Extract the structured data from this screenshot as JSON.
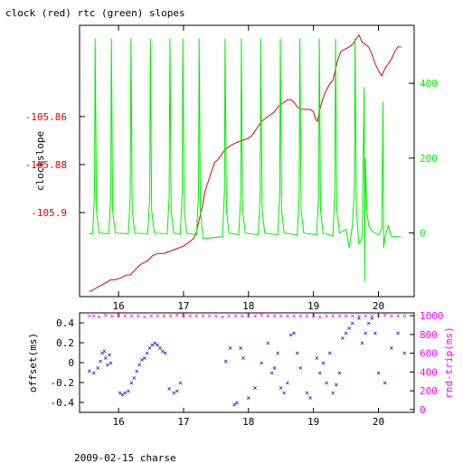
{
  "chart_data": [
    {
      "type": "line",
      "title": "clock (red) rtc (green) slopes",
      "xlabel": "",
      "ylabel": "clockslope",
      "y2label": "",
      "xlim": [
        15.4,
        20.55
      ],
      "ylim": [
        -105.935,
        -105.822
      ],
      "y2lim": [
        -170,
        555
      ],
      "xticks": [
        16,
        17,
        18,
        19,
        20
      ],
      "yticks": [
        -105.86,
        -105.88,
        -105.9
      ],
      "ytick_labels": [
        "-105.86",
        "-105.88",
        "-105.9"
      ],
      "y2ticks": [
        0,
        200,
        400
      ],
      "grid": false,
      "colors": {
        "axes": "#000000",
        "clock": "#e00000",
        "rtc": "#00ee00"
      },
      "series": [
        {
          "name": "clock",
          "axis": "left",
          "x": [
            15.55,
            15.62,
            15.68,
            15.75,
            15.82,
            15.88,
            15.95,
            16.05,
            16.12,
            16.18,
            16.25,
            16.32,
            16.38,
            16.45,
            16.52,
            16.6,
            16.7,
            16.8,
            16.9,
            17.0,
            17.05,
            17.1,
            17.15,
            17.2,
            17.25,
            17.3,
            17.33,
            17.38,
            17.43,
            17.48,
            17.53,
            17.58,
            17.63,
            17.68,
            17.73,
            17.8,
            17.9,
            18.0,
            18.05,
            18.1,
            18.15,
            18.2,
            18.3,
            18.4,
            18.45,
            18.5,
            18.55,
            18.6,
            18.65,
            18.7,
            18.75,
            18.8,
            18.85,
            18.9,
            18.95,
            19.0,
            19.03,
            19.06,
            19.1,
            19.14,
            19.18,
            19.22,
            19.26,
            19.3,
            19.34,
            19.38,
            19.42,
            19.48,
            19.55,
            19.6,
            19.65,
            19.7,
            19.75,
            19.8,
            19.85,
            19.9,
            19.95,
            20.0,
            20.05,
            20.1,
            20.15,
            20.2,
            20.25,
            20.3,
            20.35
          ],
          "y": [
            -105.933,
            -105.932,
            -105.931,
            -105.93,
            -105.929,
            -105.928,
            -105.928,
            -105.927,
            -105.926,
            -105.926,
            -105.924,
            -105.922,
            -105.921,
            -105.92,
            -105.918,
            -105.917,
            -105.917,
            -105.916,
            -105.915,
            -105.914,
            -105.913,
            -105.912,
            -105.911,
            -105.908,
            -105.902,
            -105.896,
            -105.891,
            -105.887,
            -105.883,
            -105.879,
            -105.878,
            -105.876,
            -105.874,
            -105.873,
            -105.872,
            -105.871,
            -105.87,
            -105.869,
            -105.868,
            -105.866,
            -105.864,
            -105.862,
            -105.86,
            -105.858,
            -105.856,
            -105.855,
            -105.854,
            -105.853,
            -105.853,
            -105.854,
            -105.856,
            -105.857,
            -105.857,
            -105.857,
            -105.857,
            -105.858,
            -105.861,
            -105.862,
            -105.857,
            -105.853,
            -105.85,
            -105.848,
            -105.846,
            -105.845,
            -105.84,
            -105.836,
            -105.833,
            -105.832,
            -105.831,
            -105.83,
            -105.828,
            -105.826,
            -105.829,
            -105.83,
            -105.831,
            -105.834,
            -105.838,
            -105.841,
            -105.843,
            -105.84,
            -105.838,
            -105.836,
            -105.833,
            -105.831,
            -105.831
          ]
        },
        {
          "name": "rtc",
          "axis": "right",
          "x": [
            15.55,
            15.6,
            15.63,
            15.64,
            15.66,
            15.7,
            15.85,
            15.88,
            15.89,
            15.91,
            15.95,
            16.15,
            16.18,
            16.19,
            16.21,
            16.25,
            16.45,
            16.48,
            16.49,
            16.51,
            16.55,
            16.75,
            16.78,
            16.79,
            16.81,
            16.85,
            16.95,
            16.98,
            16.99,
            17.01,
            17.05,
            17.2,
            17.23,
            17.24,
            17.26,
            17.3,
            17.6,
            17.63,
            17.64,
            17.66,
            17.7,
            17.85,
            17.88,
            17.89,
            17.91,
            17.95,
            18.15,
            18.18,
            18.19,
            18.21,
            18.25,
            18.45,
            18.48,
            18.49,
            18.51,
            18.55,
            18.75,
            18.78,
            18.79,
            18.81,
            18.85,
            19.05,
            19.08,
            19.09,
            19.11,
            19.15,
            19.25,
            19.3,
            19.33,
            19.34,
            19.36,
            19.4,
            19.5,
            19.55,
            19.6,
            19.63,
            19.64,
            19.66,
            19.7,
            19.75,
            19.78,
            19.79,
            19.8,
            19.82,
            19.85,
            19.9,
            19.95,
            20.0,
            20.05,
            20.07,
            20.08,
            20.1,
            20.15,
            20.2,
            20.25,
            20.3,
            20.35
          ],
          "y": [
            -2,
            -2,
            100,
            520,
            60,
            0,
            -2,
            100,
            520,
            60,
            0,
            -2,
            100,
            520,
            60,
            0,
            -2,
            100,
            520,
            60,
            0,
            -2,
            100,
            520,
            60,
            0,
            -3,
            110,
            520,
            60,
            0,
            -5,
            100,
            520,
            60,
            -15,
            -10,
            110,
            520,
            60,
            0,
            -5,
            100,
            520,
            60,
            0,
            -5,
            100,
            520,
            60,
            0,
            -5,
            100,
            520,
            60,
            0,
            -5,
            100,
            520,
            60,
            0,
            -5,
            100,
            520,
            60,
            0,
            -5,
            -8,
            120,
            520,
            60,
            0,
            10,
            -40,
            20,
            120,
            520,
            60,
            -30,
            -10,
            390,
            -130,
            200,
            60,
            20,
            5,
            0,
            -5,
            10,
            350,
            -40,
            -10,
            20,
            -10,
            -10,
            -10,
            -10
          ]
        }
      ]
    },
    {
      "type": "scatter",
      "title": "",
      "xlabel": "2009-02-15 charse",
      "ylabel": "offset(ms)",
      "y2label": "rnd-trip(ms)",
      "xlim": [
        15.4,
        20.55
      ],
      "ylim": [
        -0.5,
        0.5
      ],
      "y2lim": [
        -30,
        1030
      ],
      "xticks": [
        16,
        17,
        18,
        19,
        20
      ],
      "yticks": [
        0.4,
        0.2,
        0,
        -0.2,
        -0.4
      ],
      "ytick_labels": [
        "0.4",
        "0.2",
        "0",
        "-0.2",
        "-0.4"
      ],
      "y2ticks": [
        0,
        200,
        400,
        600,
        800,
        1000
      ],
      "grid": false,
      "colors": {
        "axes": "#000000",
        "offset": "#0000cc",
        "rndtrip": "#ff00ff"
      },
      "series": [
        {
          "name": "offset",
          "axis": "left",
          "x": [
            15.55,
            15.62,
            15.68,
            15.72,
            15.75,
            15.78,
            15.8,
            15.83,
            15.86,
            15.88,
            16.02,
            16.06,
            16.1,
            16.15,
            16.2,
            16.24,
            16.28,
            16.32,
            16.36,
            16.4,
            16.44,
            16.48,
            16.52,
            16.56,
            16.6,
            16.64,
            16.68,
            16.72,
            16.78,
            16.85,
            16.9,
            16.95,
            17.65,
            17.72,
            17.78,
            17.82,
            17.88,
            17.92,
            18.0,
            18.1,
            18.2,
            18.3,
            18.36,
            18.4,
            18.45,
            18.5,
            18.55,
            18.6,
            18.65,
            18.7,
            18.75,
            18.8,
            18.9,
            18.95,
            19.05,
            19.1,
            19.15,
            19.2,
            19.25,
            19.3,
            19.35,
            19.4,
            19.45,
            19.5,
            19.55,
            19.6,
            19.7,
            19.75,
            19.8,
            19.85,
            19.9,
            19.95,
            20.0,
            20.1,
            20.2,
            20.3,
            20.4
          ],
          "y": [
            -0.08,
            -0.1,
            -0.05,
            0.02,
            0.1,
            0.12,
            0.05,
            -0.02,
            0.08,
            0.0,
            -0.3,
            -0.32,
            -0.3,
            -0.28,
            -0.2,
            -0.15,
            -0.08,
            -0.02,
            0.03,
            0.05,
            0.1,
            0.15,
            0.18,
            0.2,
            0.18,
            0.15,
            0.12,
            0.1,
            -0.26,
            -0.3,
            -0.28,
            -0.2,
            0.02,
            0.15,
            -0.42,
            -0.4,
            0.15,
            0.05,
            -0.35,
            -0.25,
            0.0,
            0.2,
            -0.1,
            -0.05,
            0.1,
            -0.25,
            -0.3,
            -0.2,
            0.28,
            0.3,
            0.1,
            -0.05,
            -0.3,
            -0.35,
            0.05,
            -0.1,
            0.0,
            -0.2,
            0.1,
            -0.3,
            -0.22,
            -0.1,
            0.25,
            0.3,
            0.35,
            0.4,
            0.45,
            0.2,
            0.3,
            0.4,
            0.45,
            0.3,
            -0.1,
            -0.2,
            0.15,
            0.3,
            0.1
          ]
        },
        {
          "name": "rnd-trip",
          "axis": "right",
          "x": [
            15.55,
            15.62,
            15.7,
            15.8,
            15.9,
            16.0,
            16.1,
            16.2,
            16.3,
            16.4,
            16.5,
            16.6,
            16.7,
            16.8,
            16.9,
            17.0,
            17.1,
            17.2,
            17.3,
            17.4,
            17.5,
            17.6,
            17.7,
            17.8,
            17.9,
            18.0,
            18.1,
            18.2,
            18.3,
            18.4,
            18.5,
            18.6,
            18.7,
            18.8,
            18.9,
            19.0,
            19.1,
            19.2,
            19.3,
            19.4,
            19.5,
            19.6,
            19.7,
            19.8,
            19.9,
            20.0,
            20.1,
            20.2,
            20.3,
            20.4
          ],
          "y": [
            1000,
            1000,
            990,
            1010,
            1000,
            1000,
            1000,
            1000,
            1000,
            990,
            1000,
            1000,
            1000,
            1000,
            1010,
            1000,
            1000,
            1000,
            1000,
            1000,
            1000,
            990,
            1000,
            1000,
            1000,
            1000,
            1000,
            1010,
            1000,
            1000,
            1000,
            1000,
            1000,
            1000,
            1000,
            1000,
            990,
            1000,
            1000,
            1000,
            1000,
            1000,
            1000,
            1000,
            1000,
            1000,
            1010,
            1000,
            1000,
            1000
          ]
        }
      ]
    }
  ]
}
